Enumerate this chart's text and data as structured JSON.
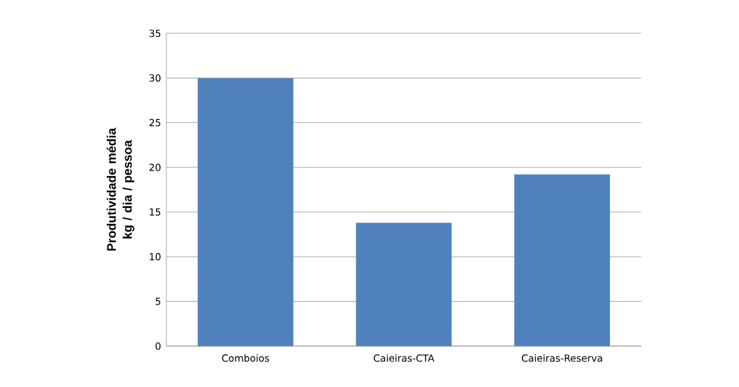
{
  "chart_data": {
    "type": "bar",
    "ylabel": "Produtividade média kg / dia / pessoa",
    "categories": [
      "Comboios",
      "Caieiras-CTA",
      "Caieiras-Reserva"
    ],
    "values": [
      30,
      13.8,
      19.2
    ],
    "color": "#4f81bd",
    "ylim": [
      0,
      35
    ],
    "yticks": [
      0,
      5,
      10,
      15,
      20,
      25,
      30,
      35
    ],
    "grid": "y"
  }
}
